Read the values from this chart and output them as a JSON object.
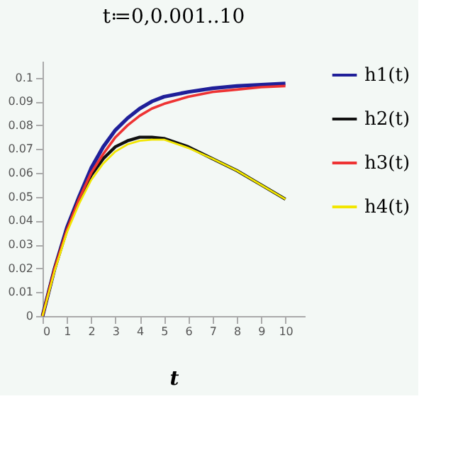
{
  "chart_data": {
    "type": "line",
    "title": "t≔0,0.001..10",
    "xlabel": "t",
    "x": [
      0,
      0.5,
      1,
      1.5,
      2,
      2.5,
      3,
      3.5,
      4,
      4.5,
      5,
      6,
      7,
      8,
      9,
      10
    ],
    "series": [
      {
        "name": "h1(t)",
        "color": "#1f1f99",
        "values": [
          0,
          0.02,
          0.037,
          0.05,
          0.062,
          0.071,
          0.078,
          0.083,
          0.087,
          0.09,
          0.092,
          0.094,
          0.0955,
          0.0965,
          0.097,
          0.0975
        ]
      },
      {
        "name": "h2(t)",
        "color": "#111111",
        "values": [
          0,
          0.02,
          0.036,
          0.049,
          0.059,
          0.066,
          0.071,
          0.0735,
          0.075,
          0.075,
          0.0745,
          0.071,
          0.066,
          0.061,
          0.055,
          0.049
        ]
      },
      {
        "name": "h3(t)",
        "color": "#ee3333",
        "values": [
          0,
          0.02,
          0.036,
          0.049,
          0.06,
          0.068,
          0.075,
          0.08,
          0.084,
          0.087,
          0.089,
          0.092,
          0.094,
          0.095,
          0.096,
          0.0965
        ]
      },
      {
        "name": "h4(t)",
        "color": "#f2e600",
        "values": [
          0,
          0.019,
          0.035,
          0.047,
          0.057,
          0.064,
          0.069,
          0.072,
          0.0735,
          0.074,
          0.074,
          0.0705,
          0.066,
          0.061,
          0.055,
          0.049
        ]
      }
    ],
    "xlim": [
      0,
      10.8
    ],
    "ylim": [
      0,
      0.107
    ],
    "xticks": [
      0,
      1,
      2,
      3,
      4,
      5,
      6,
      7,
      8,
      9,
      10
    ],
    "yticks": [
      0,
      0.01,
      0.02,
      0.03,
      0.04,
      0.05,
      0.06,
      0.07,
      0.08,
      0.09,
      0.1
    ],
    "grid": false,
    "legend": "right",
    "marker": "none",
    "line_style": "solid"
  }
}
